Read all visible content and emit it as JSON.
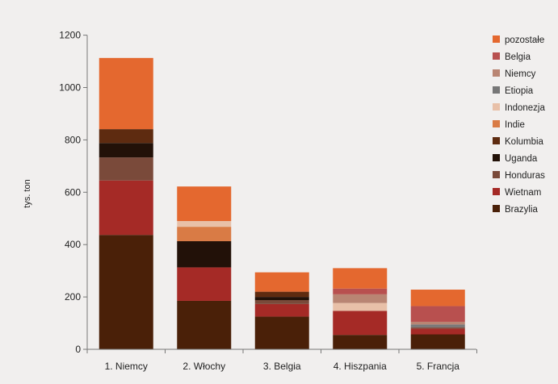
{
  "chart_data": {
    "type": "bar",
    "stacked": true,
    "ylabel": "tys. ton",
    "ylim": [
      0,
      1200
    ],
    "yticks": [
      "0",
      "200",
      "400",
      "600",
      "800",
      "1000",
      "1200"
    ],
    "grid": false,
    "legend_position": "right",
    "categories": [
      "1. Niemcy",
      "2. Włochy",
      "3. Belgia",
      "4. Hiszpania",
      "5. Francja"
    ],
    "series": [
      {
        "name": "Brazylia",
        "color": "#4a2008",
        "values": [
          437,
          185,
          125,
          55,
          57
        ]
      },
      {
        "name": "Wietnam",
        "color": "#a52a26",
        "values": [
          208,
          128,
          48,
          92,
          22
        ]
      },
      {
        "name": "Honduras",
        "color": "#7a4a3a",
        "values": [
          88,
          0,
          15,
          0,
          5
        ]
      },
      {
        "name": "Uganda",
        "color": "#221108",
        "values": [
          55,
          100,
          12,
          0,
          0
        ]
      },
      {
        "name": "Kolumbia",
        "color": "#5e2b10",
        "values": [
          53,
          0,
          20,
          0,
          0
        ]
      },
      {
        "name": "Indie",
        "color": "#d97b45",
        "values": [
          0,
          55,
          0,
          0,
          0
        ]
      },
      {
        "name": "Indonezja",
        "color": "#e8c0a8",
        "values": [
          0,
          22,
          0,
          30,
          0
        ]
      },
      {
        "name": "Etiopia",
        "color": "#777777",
        "values": [
          0,
          0,
          0,
          0,
          11
        ]
      },
      {
        "name": "Niemcy",
        "color": "#b98573",
        "values": [
          0,
          0,
          0,
          33,
          10
        ]
      },
      {
        "name": "Belgia",
        "color": "#b8504f",
        "values": [
          0,
          0,
          0,
          22,
          60
        ]
      },
      {
        "name": "pozostałe",
        "color": "#e4682f",
        "values": [
          272,
          132,
          74,
          78,
          63
        ]
      }
    ]
  }
}
